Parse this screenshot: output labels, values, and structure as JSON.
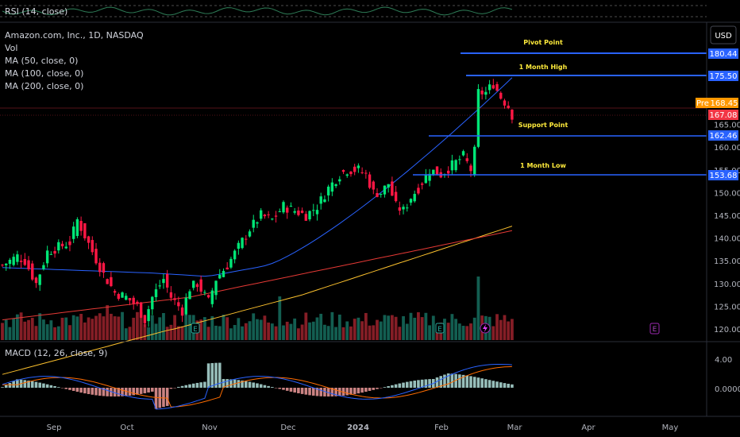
{
  "header": {
    "rsi_label": "RSI (14, close)",
    "symbol": "Amazon.com, Inc., 1D, NASDAQ",
    "vol": "Vol",
    "ma50": "MA (50, close, 0)",
    "ma100": "MA (100, close, 0)",
    "ma200": "MA (200, close, 0)",
    "currency": "USD",
    "macd_label": "MACD (12, 26, close, 9)",
    "pre_badge": "Pre"
  },
  "colors": {
    "up": "#22ab94",
    "down": "#f23645",
    "up_bright": "#00e676",
    "down_bright": "#ff1744",
    "ma50": "#2962ff",
    "ma100": "#e53935",
    "ma200": "#fbc02d",
    "level_line": "#2962ff",
    "annotation": "#ffeb3b",
    "macd": "#2962ff",
    "signal": "#ff6d00",
    "rsi": "#2e7d57",
    "earnings": "#26a69a",
    "dividend": "#9c27b0"
  },
  "chart_data": [
    {
      "type": "candlestick",
      "title": "Amazon.com, Inc., 1D, NASDAQ",
      "ylim": [
        117,
        189
      ],
      "y_ticks": [
        120,
        125,
        130,
        135,
        140,
        145,
        150,
        155,
        160,
        165
      ],
      "x_ticks": [
        "Sep",
        "Oct",
        "Nov",
        "Dec",
        "2024",
        "Feb",
        "Mar",
        "Apr",
        "May"
      ],
      "period": [
        "2023-08-18",
        "2024-02-21"
      ],
      "last_close": 167.08,
      "pre_price": 168.45,
      "levels": [
        {
          "name": "Pivot Point",
          "value": 180.44
        },
        {
          "name": "1 Month High",
          "value": 175.5
        },
        {
          "name": "Support Point",
          "value": 162.46
        },
        {
          "name": "1 Month Low",
          "value": 153.68
        }
      ],
      "price_tags": [
        "180.44",
        "175.50",
        "168.45",
        "167.08",
        "162.46",
        "153.68"
      ],
      "ma_labels": [
        "MA (50, close, 0)",
        "MA (100, close, 0)",
        "MA (200, close, 0)"
      ],
      "events": [
        "E",
        "E",
        "E"
      ]
    },
    {
      "type": "line",
      "title": "MACD (12, 26, close, 9)",
      "y_ticks": [
        "4.00",
        "0.0000"
      ]
    },
    {
      "type": "line",
      "title": "RSI (14, close)"
    }
  ]
}
